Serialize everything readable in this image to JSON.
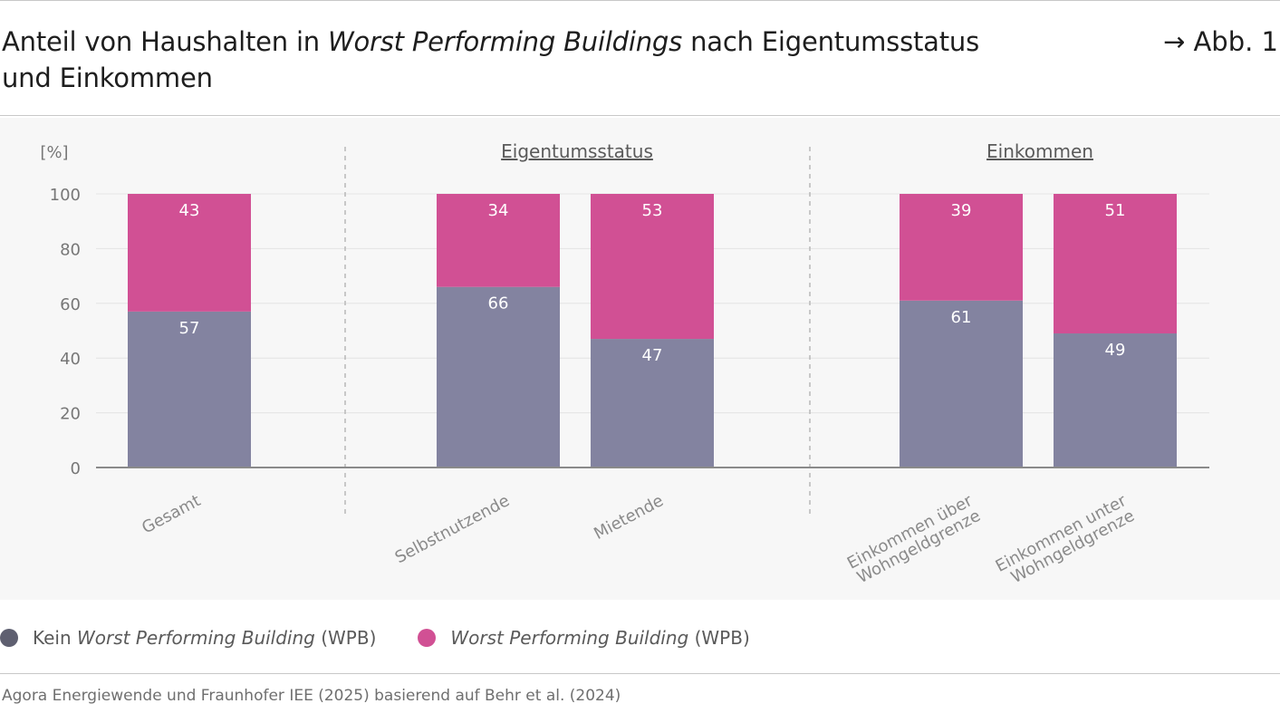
{
  "header": {
    "title_part1": "Anteil von Haushalten in ",
    "title_italic": "Worst Performing Buildings",
    "title_part2": " nach Eigentumsstatus",
    "title_line2": "und Einkommen",
    "figure_ref": "→ Abb. 1"
  },
  "chart_data": {
    "type": "bar",
    "stacked": true,
    "ylabel": "[%]",
    "ylim": [
      0,
      100
    ],
    "yticks": [
      0,
      20,
      40,
      60,
      80,
      100
    ],
    "grid": true,
    "groups": [
      {
        "label": "",
        "categories": [
          "Gesamt"
        ]
      },
      {
        "label": "Eigentumsstatus",
        "categories": [
          "Selbstnutzende",
          "Mietende"
        ]
      },
      {
        "label": "Einkommen",
        "categories": [
          "Einkommen über Wohngeldgrenze",
          "Einkommen unter Wohngeldgrenze"
        ]
      }
    ],
    "categories": [
      "Gesamt",
      "Selbstnutzende",
      "Mietende",
      "Einkommen über Wohngeldgrenze",
      "Einkommen unter Wohngeldgrenze"
    ],
    "category_lines": [
      [
        "Gesamt"
      ],
      [
        "Selbstnutzende"
      ],
      [
        "Mietende"
      ],
      [
        "Einkommen über",
        "Wohngeldgrenze"
      ],
      [
        "Einkommen unter",
        "Wohngeldgrenze"
      ]
    ],
    "series": [
      {
        "name": "Kein Worst Performing Building (WPB)",
        "color": "#8383a0",
        "values": [
          57,
          66,
          47,
          61,
          49
        ]
      },
      {
        "name": "Worst Performing Building (WPB)",
        "color": "#d15094",
        "values": [
          43,
          34,
          53,
          39,
          51
        ]
      }
    ],
    "legend_placement": "bottom-left"
  },
  "legend": {
    "item1_prefix": "Kein ",
    "item1_italic": "Worst Performing Building",
    "item1_suffix": " (WPB)",
    "item1_color": "#5e5f70",
    "item2_italic": "Worst Performing Building",
    "item2_suffix": " (WPB)",
    "item2_color": "#d15094"
  },
  "source": "Agora Energiewende und Fraunhofer IEE (2025) basierend auf Behr et al. (2024)"
}
